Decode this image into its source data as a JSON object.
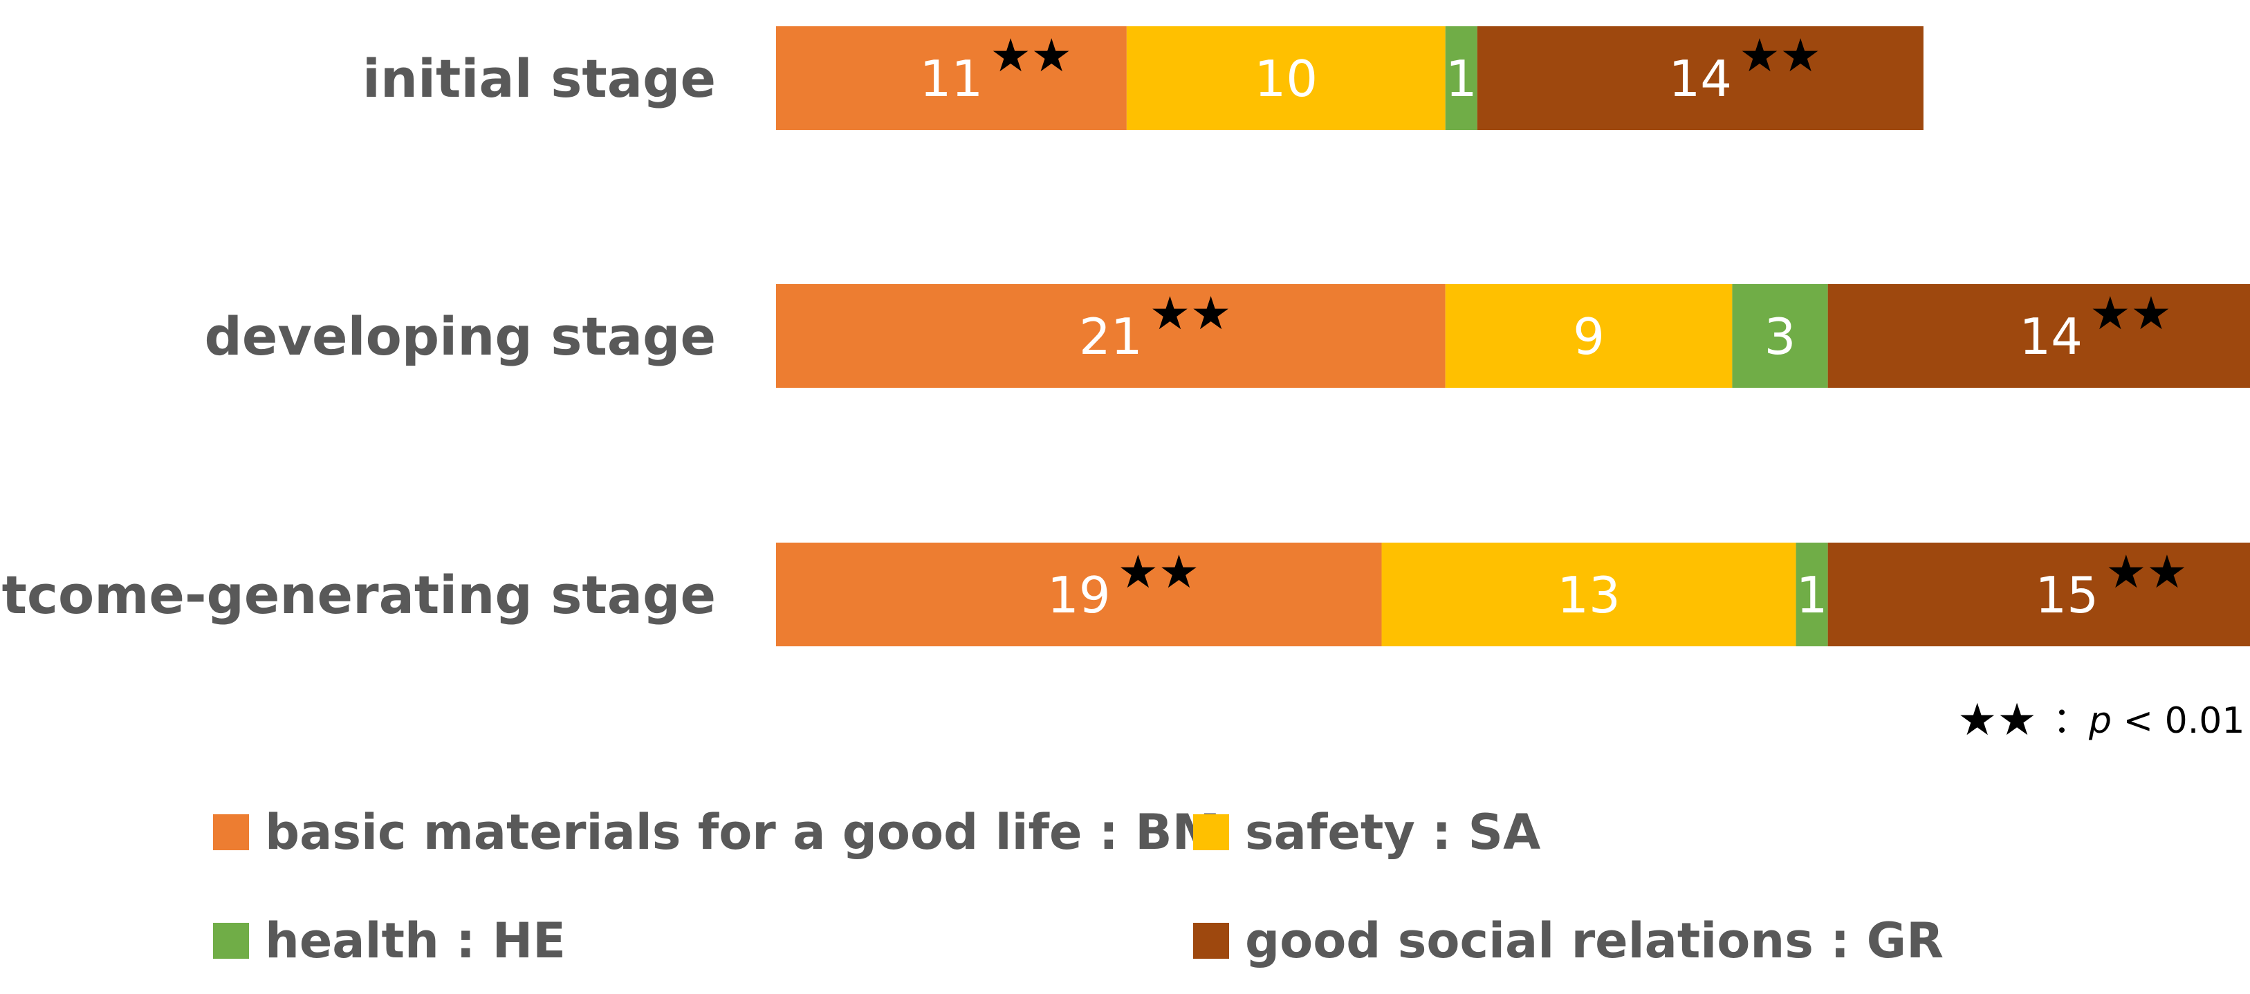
{
  "chart_data": {
    "type": "bar",
    "orientation": "horizontal",
    "stacked": true,
    "title": "",
    "xlabel": "",
    "ylabel": "",
    "grid": false,
    "xlim": [
      0,
      48
    ],
    "categories": [
      "initial stage",
      "developing stage",
      "outcome-generating stage"
    ],
    "series": [
      {
        "name": "basic materials for a good life : BM",
        "color": "#ED7D31",
        "values": [
          11,
          21,
          19
        ],
        "significant": [
          true,
          true,
          true
        ]
      },
      {
        "name": "safety : SA",
        "color": "#FFC000",
        "values": [
          10,
          9,
          13
        ],
        "significant": [
          false,
          false,
          false
        ]
      },
      {
        "name": "health : HE",
        "color": "#70AD47",
        "values": [
          1,
          3,
          1
        ],
        "significant": [
          false,
          false,
          false
        ]
      },
      {
        "name": "good social relations : GR",
        "color": "#9E480E",
        "values": [
          14,
          14,
          15
        ],
        "significant": [
          true,
          true,
          true
        ]
      }
    ],
    "significance_marker": "★★",
    "significance_note": {
      "colon": "：",
      "p": "p",
      "rest": " < 0.01"
    },
    "legend_position": "bottom"
  }
}
